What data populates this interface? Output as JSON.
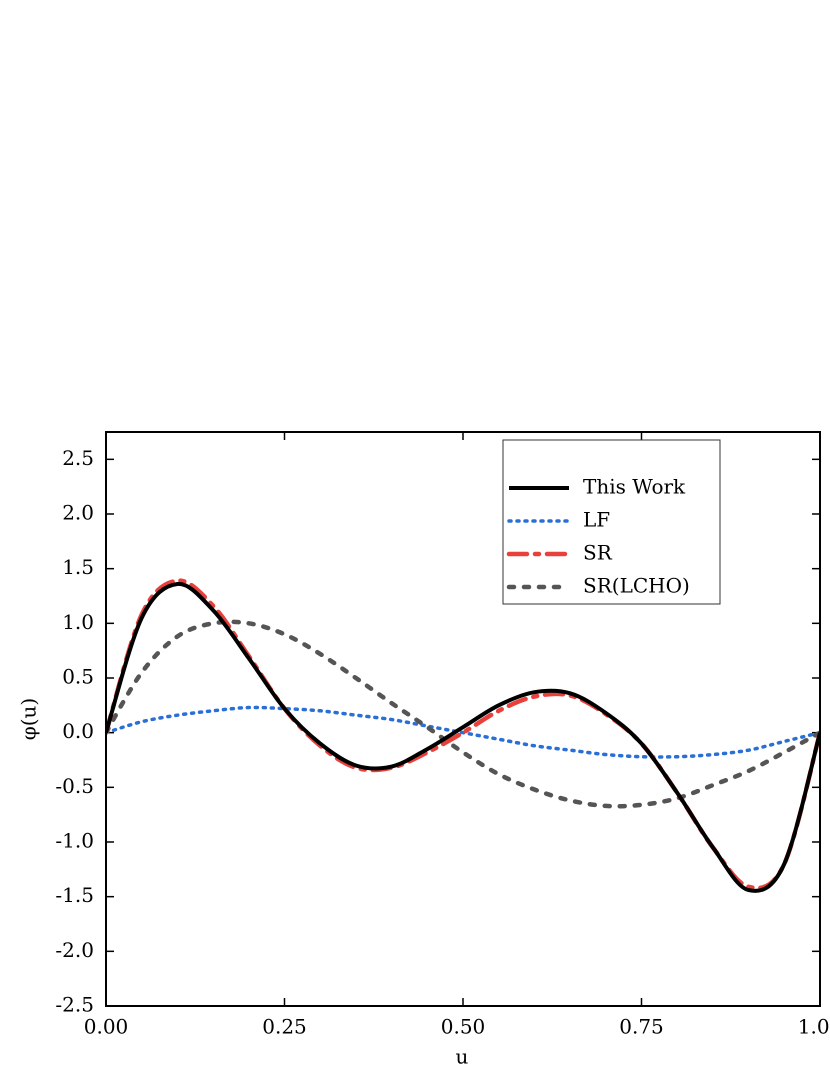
{
  "chart_data": {
    "type": "line",
    "xlabel": "u",
    "ylabel": "φ(u)",
    "x": [
      0,
      0.05,
      0.1,
      0.15,
      0.2,
      0.25,
      0.3,
      0.35,
      0.4,
      0.45,
      0.5,
      0.55,
      0.6,
      0.65,
      0.7,
      0.75,
      0.8,
      0.85,
      0.9,
      0.95,
      1
    ],
    "series": [
      {
        "name": "This Work",
        "color": "#000000",
        "linestyle": "solid",
        "values": [
          0,
          1.05,
          1.36,
          1.12,
          0.68,
          0.22,
          -0.1,
          -0.3,
          -0.31,
          -0.15,
          0.05,
          0.25,
          0.37,
          0.36,
          0.18,
          -0.1,
          -0.55,
          -1.05,
          -1.44,
          -1.2,
          0
        ]
      },
      {
        "name": "LF",
        "color": "#2a6fd6",
        "linestyle": "dotted",
        "values": [
          0,
          0.1,
          0.16,
          0.2,
          0.23,
          0.22,
          0.2,
          0.16,
          0.12,
          0.06,
          0,
          -0.06,
          -0.12,
          -0.16,
          -0.2,
          -0.22,
          -0.22,
          -0.2,
          -0.16,
          -0.08,
          0
        ]
      },
      {
        "name": "SR",
        "color": "#e8413c",
        "linestyle": "dashdot",
        "values": [
          0,
          1.08,
          1.39,
          1.16,
          0.7,
          0.22,
          -0.12,
          -0.32,
          -0.32,
          -0.18,
          0,
          0.2,
          0.33,
          0.34,
          0.17,
          -0.1,
          -0.55,
          -1.05,
          -1.41,
          -1.2,
          0
        ]
      },
      {
        "name": "SR(LCHO)",
        "color": "#555555",
        "linestyle": "dashed",
        "values": [
          0,
          0.55,
          0.88,
          1.0,
          1.0,
          0.9,
          0.72,
          0.5,
          0.27,
          0.05,
          -0.18,
          -0.38,
          -0.52,
          -0.62,
          -0.67,
          -0.66,
          -0.6,
          -0.48,
          -0.35,
          -0.18,
          0
        ]
      }
    ],
    "xlim": [
      0,
      1
    ],
    "xticks": [
      {
        "value": 0,
        "label": "0.00"
      },
      0.25,
      {
        "value": 0.5,
        "label": "0.50"
      },
      0.75,
      {
        "value": 1,
        "label": "1.00"
      }
    ],
    "ylim": [
      -2.5,
      2.75
    ],
    "yticks": [
      -2.5,
      {
        "value": -2,
        "label": "-2.0"
      },
      -1.5,
      {
        "value": -1,
        "label": "-1.0"
      },
      -0.5,
      {
        "value": 0,
        "label": "0.0"
      },
      0.5,
      {
        "value": 1,
        "label": "1.0"
      },
      1.5,
      {
        "value": 2,
        "label": "2.0"
      },
      2.5
    ],
    "legend": "upper right"
  }
}
